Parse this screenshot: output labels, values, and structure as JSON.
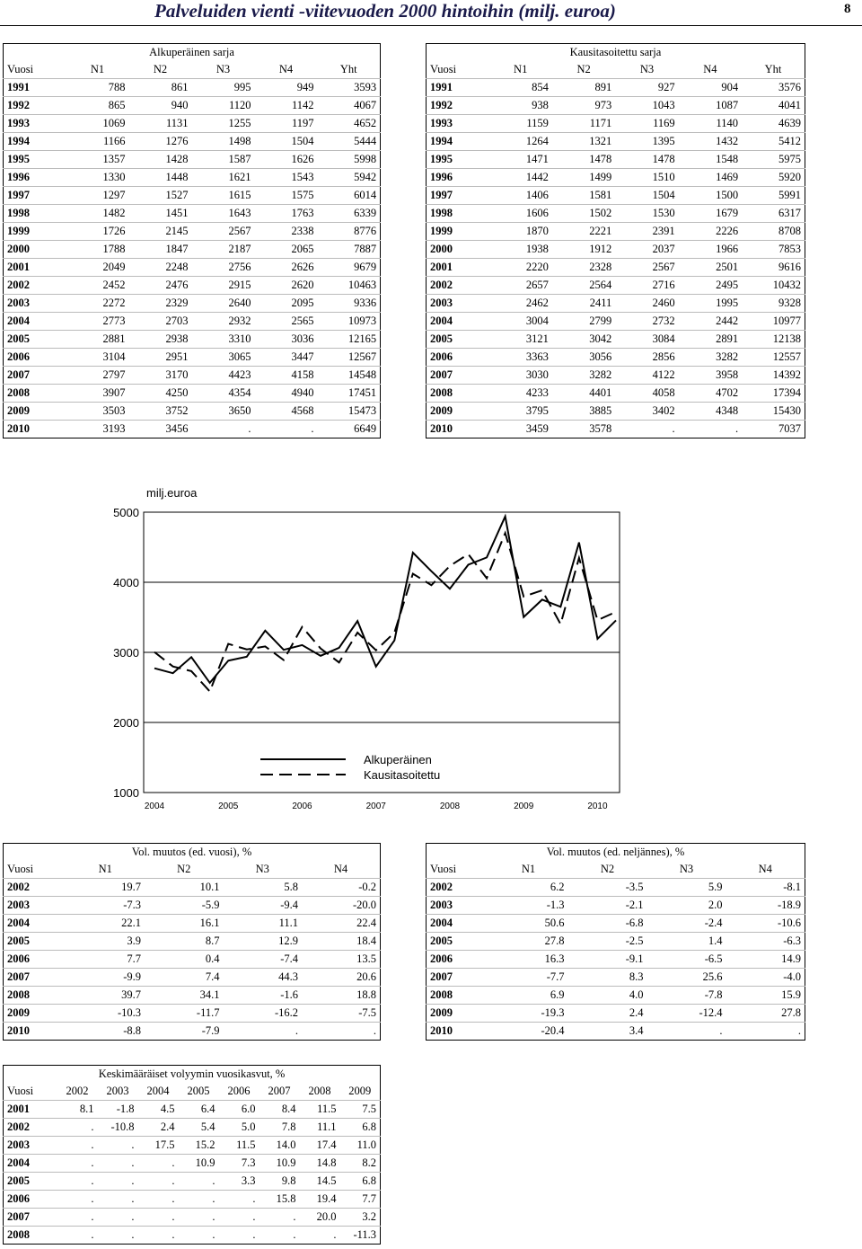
{
  "header": {
    "title": "Palveluiden vienti -viitevuoden 2000 hintoihin (milj. euroa)",
    "page": "8"
  },
  "tables": [
    {
      "title": "Alkuperäinen sarja",
      "header": [
        "Vuosi",
        "N1",
        "N2",
        "N3",
        "N4",
        "Yht"
      ],
      "rows": [
        [
          "1991",
          "788",
          "861",
          "995",
          "949",
          "3593"
        ],
        [
          "1992",
          "865",
          "940",
          "1120",
          "1142",
          "4067"
        ],
        [
          "1993",
          "1069",
          "1131",
          "1255",
          "1197",
          "4652"
        ],
        [
          "1994",
          "1166",
          "1276",
          "1498",
          "1504",
          "5444"
        ],
        [
          "1995",
          "1357",
          "1428",
          "1587",
          "1626",
          "5998"
        ],
        [
          "1996",
          "1330",
          "1448",
          "1621",
          "1543",
          "5942"
        ],
        [
          "1997",
          "1297",
          "1527",
          "1615",
          "1575",
          "6014"
        ],
        [
          "1998",
          "1482",
          "1451",
          "1643",
          "1763",
          "6339"
        ],
        [
          "1999",
          "1726",
          "2145",
          "2567",
          "2338",
          "8776"
        ],
        [
          "2000",
          "1788",
          "1847",
          "2187",
          "2065",
          "7887"
        ],
        [
          "2001",
          "2049",
          "2248",
          "2756",
          "2626",
          "9679"
        ],
        [
          "2002",
          "2452",
          "2476",
          "2915",
          "2620",
          "10463"
        ],
        [
          "2003",
          "2272",
          "2329",
          "2640",
          "2095",
          "9336"
        ],
        [
          "2004",
          "2773",
          "2703",
          "2932",
          "2565",
          "10973"
        ],
        [
          "2005",
          "2881",
          "2938",
          "3310",
          "3036",
          "12165"
        ],
        [
          "2006",
          "3104",
          "2951",
          "3065",
          "3447",
          "12567"
        ],
        [
          "2007",
          "2797",
          "3170",
          "4423",
          "4158",
          "14548"
        ],
        [
          "2008",
          "3907",
          "4250",
          "4354",
          "4940",
          "17451"
        ],
        [
          "2009",
          "3503",
          "3752",
          "3650",
          "4568",
          "15473"
        ],
        [
          "2010",
          "3193",
          "3456",
          ".",
          ".",
          "6649"
        ]
      ]
    },
    {
      "title": "Kausitasoitettu sarja",
      "header": [
        "Vuosi",
        "N1",
        "N2",
        "N3",
        "N4",
        "Yht"
      ],
      "rows": [
        [
          "1991",
          "854",
          "891",
          "927",
          "904",
          "3576"
        ],
        [
          "1992",
          "938",
          "973",
          "1043",
          "1087",
          "4041"
        ],
        [
          "1993",
          "1159",
          "1171",
          "1169",
          "1140",
          "4639"
        ],
        [
          "1994",
          "1264",
          "1321",
          "1395",
          "1432",
          "5412"
        ],
        [
          "1995",
          "1471",
          "1478",
          "1478",
          "1548",
          "5975"
        ],
        [
          "1996",
          "1442",
          "1499",
          "1510",
          "1469",
          "5920"
        ],
        [
          "1997",
          "1406",
          "1581",
          "1504",
          "1500",
          "5991"
        ],
        [
          "1998",
          "1606",
          "1502",
          "1530",
          "1679",
          "6317"
        ],
        [
          "1999",
          "1870",
          "2221",
          "2391",
          "2226",
          "8708"
        ],
        [
          "2000",
          "1938",
          "1912",
          "2037",
          "1966",
          "7853"
        ],
        [
          "2001",
          "2220",
          "2328",
          "2567",
          "2501",
          "9616"
        ],
        [
          "2002",
          "2657",
          "2564",
          "2716",
          "2495",
          "10432"
        ],
        [
          "2003",
          "2462",
          "2411",
          "2460",
          "1995",
          "9328"
        ],
        [
          "2004",
          "3004",
          "2799",
          "2732",
          "2442",
          "10977"
        ],
        [
          "2005",
          "3121",
          "3042",
          "3084",
          "2891",
          "12138"
        ],
        [
          "2006",
          "3363",
          "3056",
          "2856",
          "3282",
          "12557"
        ],
        [
          "2007",
          "3030",
          "3282",
          "4122",
          "3958",
          "14392"
        ],
        [
          "2008",
          "4233",
          "4401",
          "4058",
          "4702",
          "17394"
        ],
        [
          "2009",
          "3795",
          "3885",
          "3402",
          "4348",
          "15430"
        ],
        [
          "2010",
          "3459",
          "3578",
          ".",
          ".",
          "7037"
        ]
      ]
    },
    {
      "title": "Vol. muutos (ed. vuosi), %",
      "header": [
        "Vuosi",
        "N1",
        "N2",
        "N3",
        "N4"
      ],
      "rows": [
        [
          "2002",
          "19.7",
          "10.1",
          "5.8",
          "-0.2"
        ],
        [
          "2003",
          "-7.3",
          "-5.9",
          "-9.4",
          "-20.0"
        ],
        [
          "2004",
          "22.1",
          "16.1",
          "11.1",
          "22.4"
        ],
        [
          "2005",
          "3.9",
          "8.7",
          "12.9",
          "18.4"
        ],
        [
          "2006",
          "7.7",
          "0.4",
          "-7.4",
          "13.5"
        ],
        [
          "2007",
          "-9.9",
          "7.4",
          "44.3",
          "20.6"
        ],
        [
          "2008",
          "39.7",
          "34.1",
          "-1.6",
          "18.8"
        ],
        [
          "2009",
          "-10.3",
          "-11.7",
          "-16.2",
          "-7.5"
        ],
        [
          "2010",
          "-8.8",
          "-7.9",
          ".",
          "."
        ]
      ]
    },
    {
      "title": "Vol. muutos (ed. neljännes), %",
      "header": [
        "Vuosi",
        "N1",
        "N2",
        "N3",
        "N4"
      ],
      "rows": [
        [
          "2002",
          "6.2",
          "-3.5",
          "5.9",
          "-8.1"
        ],
        [
          "2003",
          "-1.3",
          "-2.1",
          "2.0",
          "-18.9"
        ],
        [
          "2004",
          "50.6",
          "-6.8",
          "-2.4",
          "-10.6"
        ],
        [
          "2005",
          "27.8",
          "-2.5",
          "1.4",
          "-6.3"
        ],
        [
          "2006",
          "16.3",
          "-9.1",
          "-6.5",
          "14.9"
        ],
        [
          "2007",
          "-7.7",
          "8.3",
          "25.6",
          "-4.0"
        ],
        [
          "2008",
          "6.9",
          "4.0",
          "-7.8",
          "15.9"
        ],
        [
          "2009",
          "-19.3",
          "2.4",
          "-12.4",
          "27.8"
        ],
        [
          "2010",
          "-20.4",
          "3.4",
          ".",
          "."
        ]
      ]
    },
    {
      "title": "Keskimääräiset volyymin vuosikasvut, %",
      "header": [
        "Vuosi",
        "2002",
        "2003",
        "2004",
        "2005",
        "2006",
        "2007",
        "2008",
        "2009"
      ],
      "rows": [
        [
          "2001",
          "8.1",
          "-1.8",
          "4.5",
          "6.4",
          "6.0",
          "8.4",
          "11.5",
          "7.5"
        ],
        [
          "2002",
          ".",
          "-10.8",
          "2.4",
          "5.4",
          "5.0",
          "7.8",
          "11.1",
          "6.8"
        ],
        [
          "2003",
          ".",
          ".",
          "17.5",
          "15.2",
          "11.5",
          "14.0",
          "17.4",
          "11.0"
        ],
        [
          "2004",
          ".",
          ".",
          ".",
          "10.9",
          "7.3",
          "10.9",
          "14.8",
          "8.2"
        ],
        [
          "2005",
          ".",
          ".",
          ".",
          ".",
          "3.3",
          "9.8",
          "14.5",
          "6.8"
        ],
        [
          "2006",
          ".",
          ".",
          ".",
          ".",
          ".",
          "15.8",
          "19.4",
          "7.7"
        ],
        [
          "2007",
          ".",
          ".",
          ".",
          ".",
          ".",
          ".",
          "20.0",
          "3.2"
        ],
        [
          "2008",
          ".",
          ".",
          ".",
          ".",
          ".",
          ".",
          ".",
          "-11.3"
        ]
      ]
    }
  ],
  "chart_data": {
    "type": "line",
    "y_label": "milj.euroa",
    "categories": [
      "2004",
      null,
      null,
      null,
      "2005",
      null,
      null,
      null,
      "2006",
      null,
      null,
      null,
      "2007",
      null,
      null,
      null,
      "2008",
      null,
      null,
      null,
      "2009",
      null,
      null,
      null,
      "2010",
      null
    ],
    "series": [
      {
        "name": "Alkuperäinen",
        "color": "#000000",
        "dashed": false,
        "values": [
          2773,
          2703,
          2932,
          2565,
          2881,
          2938,
          3310,
          3036,
          3104,
          2951,
          3065,
          3447,
          2797,
          3170,
          4423,
          4158,
          3907,
          4250,
          4354,
          4940,
          3503,
          3752,
          3650,
          4568,
          3193,
          3456
        ]
      },
      {
        "name": "Kausitasoitettu",
        "color": "#000000",
        "dashed": true,
        "values": [
          3004,
          2799,
          2732,
          2442,
          3121,
          3042,
          3084,
          2891,
          3363,
          3056,
          2856,
          3282,
          3030,
          3282,
          4122,
          3958,
          4233,
          4401,
          4058,
          4702,
          3795,
          3885,
          3402,
          4348,
          3459,
          3578
        ]
      }
    ],
    "ylim": [
      1000,
      5000
    ],
    "yticks": [
      1000,
      2000,
      3000,
      4000,
      5000
    ],
    "grid": true,
    "legend": "bottom"
  }
}
